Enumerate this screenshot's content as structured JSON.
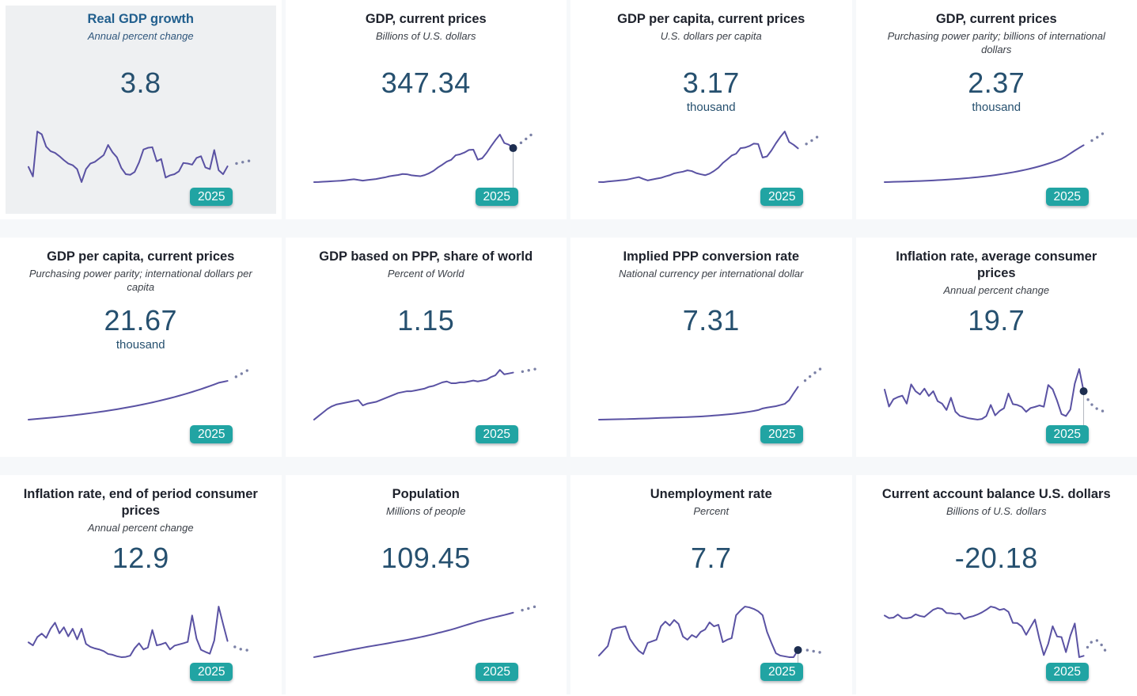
{
  "page": {
    "year_badge": "2025"
  },
  "colors": {
    "line": "#5a52a3",
    "forecast_dot": "#7b81a6",
    "marker": "#1d2e50",
    "connector": "#b3b7bf",
    "badge_teal": "#21a4a3",
    "value_blue": "#26506f",
    "selected_title_blue": "#215f8e",
    "selected_tile_bg": "#eef0f2"
  },
  "chart_data": [
    {
      "type": "line",
      "title": "Real GDP growth",
      "subtitle": "Annual percent change",
      "value": "3.8",
      "unit": "",
      "year_badge": "2025",
      "selected": true,
      "has_end_marker": false,
      "years": {
        "first": 1980,
        "last_actual": 2025,
        "last_forecast": 2030
      },
      "values": [
        3.7,
        2.0,
        10.0,
        9.5,
        7.3,
        6.5,
        6.2,
        5.6,
        4.9,
        4.3,
        4.0,
        3.3,
        1.0,
        3.3,
        4.3,
        4.6,
        5.2,
        5.8,
        7.6,
        6.3,
        5.4,
        3.5,
        2.4,
        2.3,
        2.8,
        4.5,
        6.8,
        7.1,
        7.2,
        4.7,
        5.1,
        1.8,
        2.2,
        2.4,
        2.9,
        4.4,
        4.3,
        4.1,
        5.3,
        5.6,
        3.6,
        3.3,
        6.7,
        3.1,
        2.4,
        3.8
      ],
      "forecast": [
        4.0,
        4.3,
        4.5,
        4.6,
        4.8
      ]
    },
    {
      "type": "line",
      "title": "GDP, current prices",
      "subtitle": "Billions of U.S. dollars",
      "value": "347.34",
      "unit": "",
      "year_badge": "2025",
      "selected": false,
      "has_end_marker": true,
      "years": {
        "first": 1980,
        "last_actual": 2025,
        "last_forecast": 2030
      },
      "values": [
        22.9,
        23.4,
        26.0,
        28.4,
        30.7,
        33.4,
        35.5,
        39.9,
        45.0,
        50.0,
        43.0,
        37.0,
        42.0,
        47.0,
        51.9,
        60.2,
        67.6,
        78.4,
        84.8,
        90.7,
        99.8,
        97.6,
        87.8,
        82.9,
        78.8,
        89.6,
        107.4,
        130.3,
        162.8,
        189.1,
        218.9,
        236.0,
        279.1,
        288.4,
        305.5,
        329.4,
        332.9,
        236.5,
        250.3,
        302.3,
        365.3,
        423.9,
        476.7,
        395.9,
        380.0,
        347.34
      ],
      "forecast": [
        374,
        405,
        438,
        472,
        506
      ]
    },
    {
      "type": "line",
      "title": "GDP per capita, current prices",
      "subtitle": "U.S. dollars per capita",
      "value": "3.17",
      "unit": "thousand",
      "year_badge": "2025",
      "selected": false,
      "has_end_marker": false,
      "years": {
        "first": 1980,
        "last_actual": 2025,
        "last_forecast": 2030
      },
      "values": [
        509,
        506,
        547,
        582,
        615,
        654,
        680,
        748,
        826,
        898,
        757,
        637,
        707,
        774,
        838,
        953,
        1049,
        1192,
        1265,
        1327,
        1433,
        1374,
        1213,
        1124,
        1049,
        1171,
        1378,
        1641,
        2011,
        2292,
        2602,
        2748,
        3187,
        3230,
        3352,
        3547,
        3514,
        2444,
        2537,
        3006,
        3569,
        4068,
        4504,
        3674,
        3457,
        3174
      ],
      "forecast": [
        3330,
        3540,
        3760,
        3990,
        4230
      ]
    },
    {
      "type": "line",
      "title": "GDP, current prices",
      "subtitle": "Purchasing power parity; billions of international dollars",
      "value": "2.37",
      "unit": "thousand",
      "year_badge": "2025",
      "selected": false,
      "has_end_marker": false,
      "years": {
        "first": 1980,
        "last_actual": 2025,
        "last_forecast": 2030
      },
      "values": [
        88,
        94,
        101,
        109,
        117,
        125,
        135,
        145,
        155,
        167,
        179,
        192,
        207,
        222,
        238,
        256,
        275,
        295,
        317,
        340,
        366,
        393,
        422,
        453,
        486,
        522,
        561,
        603,
        647,
        695,
        747,
        802,
        861,
        925,
        993,
        1067,
        1146,
        1231,
        1322,
        1420,
        1525,
        1680,
        1860,
        2040,
        2210,
        2370
      ],
      "forecast": [
        2520,
        2680,
        2850,
        3030,
        3220
      ]
    },
    {
      "type": "line",
      "title": "GDP per capita, current prices",
      "subtitle": "Purchasing power parity; international dollars per capita",
      "value": "21.67",
      "unit": "thousand",
      "year_badge": "2025",
      "selected": false,
      "has_end_marker": false,
      "years": {
        "first": 1980,
        "last_actual": 2025,
        "last_forecast": 2030
      },
      "values": [
        4300,
        4460,
        4630,
        4800,
        4980,
        5170,
        5360,
        5560,
        5770,
        5990,
        6210,
        6440,
        6680,
        6930,
        7190,
        7460,
        7740,
        8030,
        8330,
        8640,
        8960,
        9300,
        9650,
        10010,
        10380,
        10770,
        11170,
        11590,
        12020,
        12470,
        12940,
        13420,
        13920,
        14440,
        14980,
        15540,
        16120,
        16720,
        17350,
        18000,
        18670,
        19370,
        20090,
        20840,
        21250,
        21670
      ],
      "forecast": [
        22600,
        23600,
        24700,
        25800,
        27000
      ]
    },
    {
      "type": "line",
      "title": "GDP based on PPP, share of world",
      "subtitle": "Percent of World",
      "value": "1.15",
      "unit": "",
      "year_badge": "2025",
      "selected": false,
      "has_end_marker": false,
      "years": {
        "first": 1980,
        "last_actual": 2025,
        "last_forecast": 2030
      },
      "values": [
        0.62,
        0.66,
        0.7,
        0.74,
        0.77,
        0.79,
        0.8,
        0.81,
        0.82,
        0.83,
        0.84,
        0.78,
        0.8,
        0.81,
        0.82,
        0.84,
        0.86,
        0.88,
        0.9,
        0.92,
        0.93,
        0.94,
        0.94,
        0.95,
        0.96,
        0.97,
        0.99,
        1.0,
        1.02,
        1.04,
        1.05,
        1.03,
        1.03,
        1.04,
        1.04,
        1.05,
        1.06,
        1.05,
        1.06,
        1.07,
        1.1,
        1.12,
        1.18,
        1.13,
        1.14,
        1.15
      ],
      "forecast": [
        1.16,
        1.16,
        1.17,
        1.18,
        1.19
      ]
    },
    {
      "type": "line",
      "title": "Implied PPP conversion rate",
      "subtitle": "National currency per international dollar",
      "value": "7.31",
      "unit": "",
      "year_badge": "2025",
      "selected": false,
      "has_end_marker": false,
      "years": {
        "first": 1980,
        "last_actual": 2025,
        "last_forecast": 2030
      },
      "values": [
        0.17,
        0.18,
        0.2,
        0.22,
        0.24,
        0.26,
        0.28,
        0.31,
        0.34,
        0.37,
        0.4,
        0.43,
        0.47,
        0.5,
        0.54,
        0.57,
        0.6,
        0.63,
        0.66,
        0.69,
        0.72,
        0.76,
        0.8,
        0.85,
        0.92,
        0.99,
        1.06,
        1.13,
        1.22,
        1.31,
        1.4,
        1.5,
        1.62,
        1.75,
        1.9,
        2.06,
        2.25,
        2.6,
        2.8,
        2.95,
        3.1,
        3.35,
        3.6,
        4.4,
        5.9,
        7.31
      ],
      "forecast": [
        8.2,
        9.0,
        9.8,
        10.5,
        11.2
      ]
    },
    {
      "type": "line",
      "title": "Inflation rate, average consumer prices",
      "subtitle": "Annual percent change",
      "value": "19.7",
      "unit": "",
      "year_badge": "2025",
      "selected": false,
      "has_end_marker": true,
      "years": {
        "first": 1980,
        "last_actual": 2025,
        "last_forecast": 2030
      },
      "values": [
        20.7,
        10.3,
        14.8,
        16.1,
        17.0,
        12.1,
        23.9,
        19.7,
        17.7,
        21.3,
        16.8,
        19.7,
        13.6,
        12.1,
        8.2,
        15.7,
        7.2,
        4.6,
        3.9,
        3.1,
        2.7,
        2.3,
        2.7,
        4.5,
        11.3,
        4.9,
        7.6,
        9.3,
        18.3,
        11.8,
        11.3,
        10.1,
        7.1,
        9.4,
        10.1,
        11.0,
        10.2,
        23.5,
        20.9,
        13.9,
        5.7,
        4.5,
        8.5,
        24.4,
        33.3,
        19.7
      ],
      "forecast": [
        14.5,
        11.0,
        9.0,
        7.8,
        7.0
      ]
    },
    {
      "type": "line",
      "title": "Inflation rate, end of period consumer prices",
      "subtitle": "Annual percent change",
      "value": "12.9",
      "unit": "",
      "year_badge": "2025",
      "selected": false,
      "has_end_marker": false,
      "years": {
        "first": 1980,
        "last_actual": 2025,
        "last_forecast": 2030
      },
      "values": [
        12.0,
        10.0,
        15.5,
        17.8,
        15.0,
        21.0,
        25.0,
        18.0,
        22.0,
        16.0,
        21.0,
        14.0,
        21.0,
        11.0,
        9.0,
        8.0,
        7.3,
        6.2,
        4.3,
        3.8,
        2.8,
        2.2,
        2.4,
        3.2,
        8.1,
        11.4,
        7.3,
        8.6,
        20.2,
        10.0,
        10.7,
        11.8,
        7.3,
        9.8,
        10.6,
        11.4,
        12.3,
        29.8,
        14.4,
        7.1,
        5.7,
        4.5,
        13.2,
        35.7,
        24.1,
        12.9
      ],
      "forecast": [
        10.0,
        8.5,
        7.5,
        7.0,
        6.6
      ]
    },
    {
      "type": "line",
      "title": "Population",
      "subtitle": "Millions of people",
      "value": "109.45",
      "unit": "",
      "year_badge": "2025",
      "selected": false,
      "has_end_marker": false,
      "years": {
        "first": 1980,
        "last_actual": 2025,
        "last_forecast": 2030
      },
      "values": [
        44.0,
        45.2,
        46.5,
        47.8,
        49.1,
        50.4,
        51.7,
        53.0,
        54.3,
        55.6,
        56.8,
        58.0,
        59.2,
        60.3,
        61.4,
        62.5,
        63.6,
        64.8,
        66.0,
        67.2,
        68.3,
        69.5,
        70.7,
        72.0,
        73.4,
        74.8,
        76.3,
        77.8,
        79.6,
        81.1,
        82.8,
        84.5,
        86.4,
        88.4,
        90.4,
        92.4,
        94.4,
        96.4,
        98.1,
        99.8,
        101.5,
        103.0,
        104.5,
        106.0,
        107.7,
        109.45
      ],
      "forecast": [
        111.2,
        113.0,
        114.8,
        116.6,
        118.4
      ]
    },
    {
      "type": "line",
      "title": "Unemployment rate",
      "subtitle": "Percent",
      "value": "7.7",
      "unit": "",
      "year_badge": "2025",
      "selected": false,
      "has_end_marker": true,
      "years": {
        "first": 1980,
        "last_actual": 2025,
        "last_forecast": 2030
      },
      "values": [
        7.0,
        7.6,
        8.2,
        10.3,
        10.5,
        10.6,
        10.7,
        9.1,
        8.3,
        7.6,
        7.2,
        8.6,
        8.8,
        9.0,
        10.7,
        11.3,
        10.8,
        11.5,
        11.0,
        9.4,
        9.0,
        9.6,
        9.3,
        10.0,
        10.3,
        11.2,
        10.7,
        10.9,
        8.7,
        9.0,
        9.2,
        12.1,
        12.7,
        13.2,
        13.1,
        12.9,
        12.6,
        12.1,
        10.0,
        8.6,
        7.3,
        7.0,
        6.9,
        6.8,
        6.8,
        7.7
      ],
      "forecast": [
        7.8,
        7.7,
        7.6,
        7.5,
        7.4
      ]
    },
    {
      "type": "line",
      "title": "Current account balance U.S. dollars",
      "subtitle": "Billions of U.S. dollars",
      "value": "-20.18",
      "unit": "",
      "year_badge": "2025",
      "selected": false,
      "has_end_marker": false,
      "years": {
        "first": 1980,
        "last_actual": 2025,
        "last_forecast": 2030
      },
      "values": [
        -0.9,
        -2.1,
        -1.9,
        -0.4,
        -2.1,
        -2.2,
        -1.8,
        -0.3,
        -1.1,
        -1.5,
        0.2,
        1.9,
        2.7,
        2.3,
        0.3,
        0.2,
        -0.2,
        0.1,
        -2.5,
        -1.7,
        -1.2,
        -0.4,
        0.6,
        1.9,
        3.4,
        2.9,
        1.8,
        2.3,
        0.9,
        -4.4,
        -4.5,
        -6.1,
        -10.1,
        -6.4,
        -2.8,
        -12.1,
        -19.8,
        -14.4,
        -6.0,
        -10.9,
        -11.2,
        -18.4,
        -10.5,
        -4.7,
        -20.8,
        -20.18
      ],
      "forecast": [
        -15.5,
        -13.0,
        -12.8,
        -14.8,
        -18.0
      ]
    }
  ]
}
